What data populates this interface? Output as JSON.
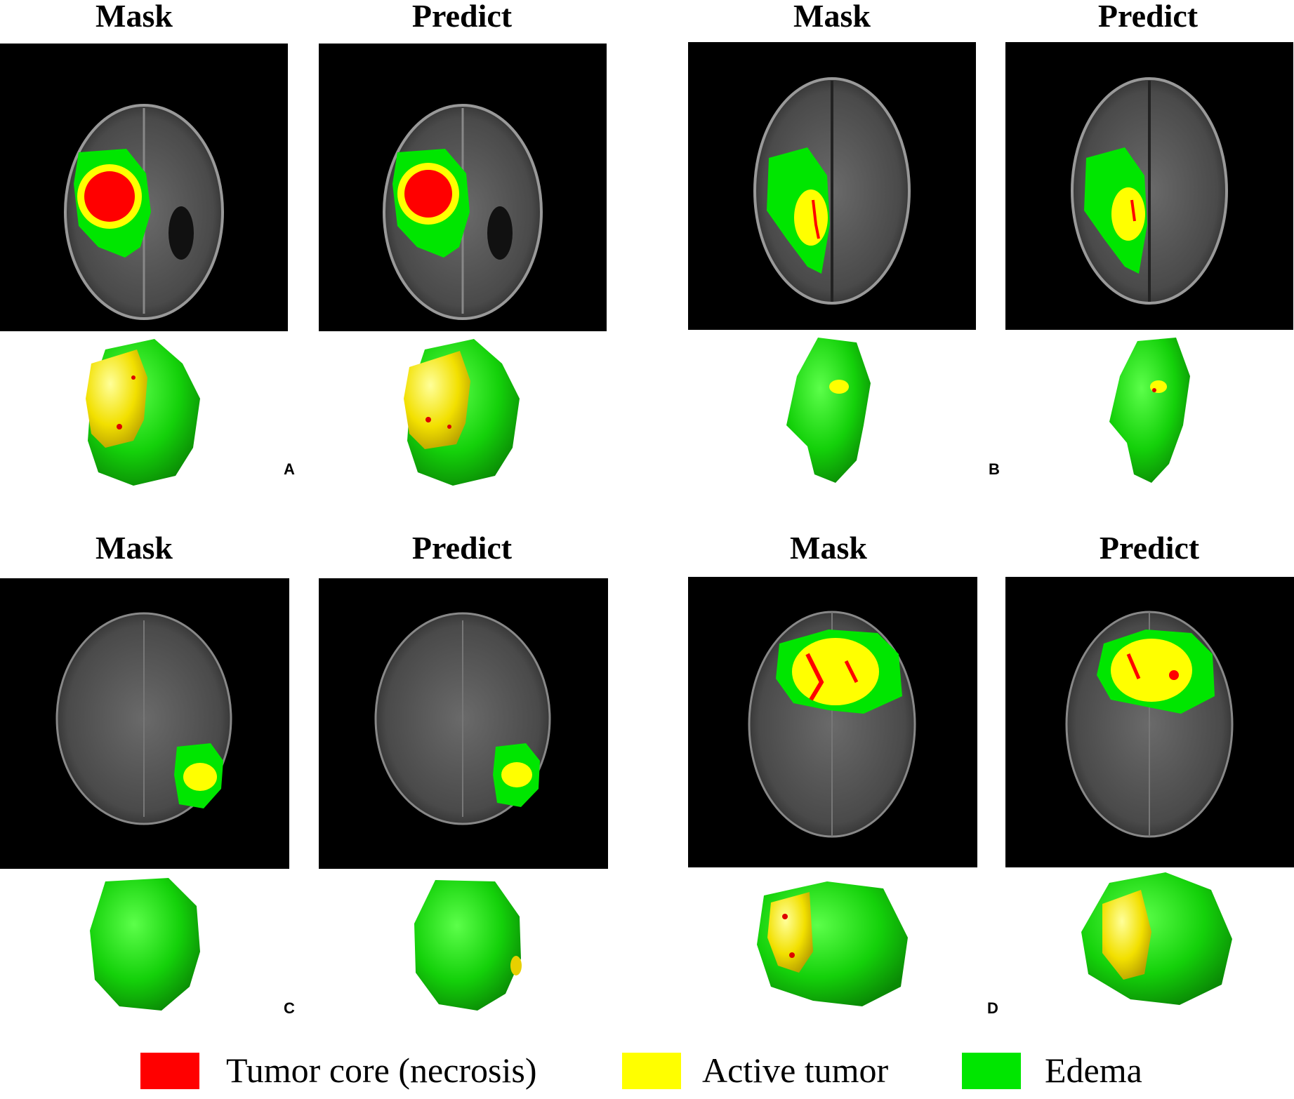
{
  "colors": {
    "tumor_core": "#ff0000",
    "active_tumor": "#ffff00",
    "edema": "#00e600"
  },
  "panels": [
    {
      "letter": "A",
      "mask_title": "Mask",
      "predict_title": "Predict"
    },
    {
      "letter": "B",
      "mask_title": "Mask",
      "predict_title": "Predict"
    },
    {
      "letter": "C",
      "mask_title": "Mask",
      "predict_title": "Predict"
    },
    {
      "letter": "D",
      "mask_title": "Mask",
      "predict_title": "Predict"
    }
  ],
  "legend": [
    {
      "label": "Tumor core (necrosis)",
      "color": "#ff0000"
    },
    {
      "label": "Active tumor",
      "color": "#ffff00"
    },
    {
      "label": "Edema",
      "color": "#00e600"
    }
  ]
}
